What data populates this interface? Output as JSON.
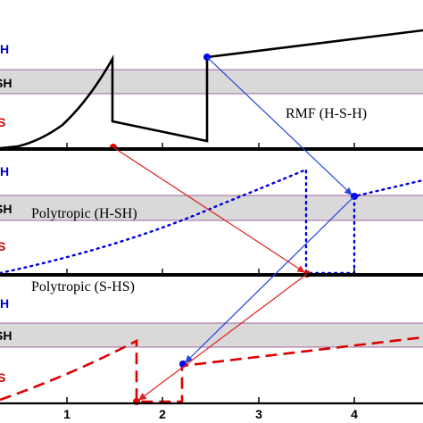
{
  "panels": [
    {
      "name": "top",
      "annotation": "RMF (H-S-H)",
      "labels": {
        "upper": "H",
        "middle": "SH",
        "lower": "S"
      }
    },
    {
      "name": "middle",
      "annotation": "Polytropic (H-SH)",
      "labels": {
        "upper": "H",
        "middle": "SH",
        "lower": "S"
      }
    },
    {
      "name": "bottom",
      "annotation": "Polytropic (S-HS)",
      "labels": {
        "upper": "H",
        "middle": "SH",
        "lower": "S"
      }
    }
  ],
  "x_ticks": [
    "1",
    "2",
    "3",
    "4"
  ],
  "colors": {
    "hadron_label": "#0000cc",
    "shell_label": "#000000",
    "strange_label": "#cc0000",
    "rmf_curve": "#000000",
    "polytropic_hsh_curve": "#0000cc",
    "polytropic_shs_curve": "#dd0000",
    "shaded_band": "#d9d9d9",
    "arrow_blue": "#2244dd",
    "arrow_red": "#dd2222"
  }
}
